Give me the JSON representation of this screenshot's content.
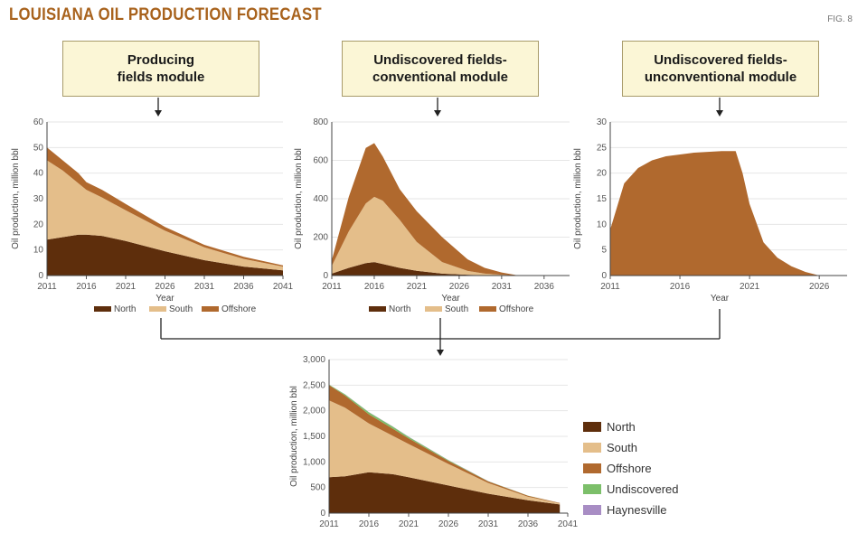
{
  "title": "LOUISIANA OIL PRODUCTION FORECAST",
  "fig_label": "FIG. 8",
  "modules": [
    {
      "label": "Producing\nfields module"
    },
    {
      "label": "Undiscovered fields-\nconventional module"
    },
    {
      "label": "Undiscovered fields-\nunconventional module"
    }
  ],
  "colors": {
    "north": "#5e2e0c",
    "south": "#e4be8a",
    "offshore": "#b0692e",
    "undiscovered": "#7cbf6a",
    "haynesville": "#a88dc4",
    "arrow": "#222222"
  },
  "chart_data": [
    {
      "type": "area",
      "title": "",
      "xlabel": "Year",
      "ylabel": "Oil production, million bbl",
      "xlim": [
        2011,
        2041
      ],
      "ylim": [
        0,
        60
      ],
      "xticks": [
        "2011",
        "2016",
        "2021",
        "2026",
        "2031",
        "2036",
        "2041"
      ],
      "yticks": [
        "0",
        "10",
        "20",
        "30",
        "40",
        "50",
        "60"
      ],
      "stack_order": [
        "North",
        "South",
        "Offshore"
      ],
      "x": [
        2011,
        2013,
        2015,
        2016,
        2018,
        2021,
        2026,
        2031,
        2036,
        2041
      ],
      "series": [
        {
          "name": "North",
          "values": [
            14,
            15,
            16,
            16,
            15.5,
            13.5,
            9.5,
            6,
            3.5,
            2
          ]
        },
        {
          "name": "South",
          "values": [
            31,
            26,
            20,
            17.5,
            15,
            12,
            8,
            5,
            3,
            1.5
          ]
        },
        {
          "name": "Offshore",
          "values": [
            5,
            4,
            4,
            3,
            3,
            2.5,
            1.5,
            1,
            0.8,
            0.5
          ]
        }
      ],
      "legend": [
        "North",
        "South",
        "Offshore"
      ]
    },
    {
      "type": "area",
      "title": "",
      "xlabel": "Year",
      "ylabel": "Oil production, million bbl",
      "xlim": [
        2011,
        2039
      ],
      "ylim": [
        0,
        800
      ],
      "xticks": [
        "2011",
        "2016",
        "2021",
        "2026",
        "2031",
        "2036"
      ],
      "yticks": [
        "0",
        "200",
        "400",
        "600",
        "800"
      ],
      "stack_order": [
        "North",
        "South",
        "Offshore"
      ],
      "x": [
        2011,
        2013,
        2015,
        2016,
        2017,
        2019,
        2021,
        2024,
        2027,
        2029,
        2031,
        2033
      ],
      "series": [
        {
          "name": "North",
          "values": [
            10,
            40,
            65,
            70,
            60,
            40,
            25,
            10,
            4,
            2,
            1,
            0
          ]
        },
        {
          "name": "South",
          "values": [
            40,
            190,
            310,
            340,
            330,
            250,
            150,
            60,
            20,
            8,
            3,
            0
          ]
        },
        {
          "name": "Offshore",
          "values": [
            30,
            180,
            290,
            280,
            230,
            160,
            160,
            130,
            60,
            30,
            12,
            0
          ]
        }
      ],
      "legend": [
        "North",
        "South",
        "Offshore"
      ]
    },
    {
      "type": "area",
      "title": "",
      "xlabel": "Year",
      "ylabel": "Oil production, million bbl",
      "xlim": [
        2011,
        2028
      ],
      "ylim": [
        0,
        30
      ],
      "xticks": [
        "2011",
        "2016",
        "2021",
        "2026"
      ],
      "yticks": [
        "0",
        "5",
        "10",
        "15",
        "20",
        "25",
        "30"
      ],
      "x": [
        2011,
        2012,
        2013,
        2014,
        2015,
        2017,
        2019,
        2020,
        2020.5,
        2021,
        2022,
        2023,
        2024,
        2025,
        2026
      ],
      "series": [
        {
          "name": "",
          "values": [
            9,
            18,
            21,
            22.5,
            23.3,
            24,
            24.3,
            24.3,
            20,
            14,
            6.5,
            3.5,
            1.8,
            0.7,
            0
          ]
        }
      ]
    },
    {
      "type": "area",
      "title": "",
      "xlabel": "",
      "ylabel": "Oil production, million bbl",
      "xlim": [
        2011,
        2041
      ],
      "ylim": [
        0,
        3000
      ],
      "xticks": [
        "2011",
        "2016",
        "2021",
        "2026",
        "2031",
        "2036",
        "2041"
      ],
      "yticks": [
        "0",
        "500",
        "1,000",
        "1,500",
        "2,000",
        "2,500",
        "3,000"
      ],
      "stack_order": [
        "North",
        "South",
        "Offshore",
        "Undiscovered",
        "Haynesville"
      ],
      "x": [
        2011,
        2013,
        2016,
        2019,
        2021,
        2026,
        2031,
        2036,
        2040
      ],
      "series": [
        {
          "name": "North",
          "values": [
            700,
            720,
            800,
            760,
            700,
            540,
            380,
            250,
            170
          ]
        },
        {
          "name": "South",
          "values": [
            1500,
            1340,
            950,
            750,
            650,
            420,
            210,
            70,
            20
          ]
        },
        {
          "name": "Offshore",
          "values": [
            300,
            240,
            180,
            140,
            110,
            60,
            30,
            20,
            10
          ]
        },
        {
          "name": "Undiscovered",
          "values": [
            10,
            20,
            40,
            40,
            30,
            15,
            5,
            2,
            0
          ]
        },
        {
          "name": "Haynesville",
          "values": [
            0,
            2,
            4,
            4,
            3,
            2,
            1,
            0,
            0
          ]
        }
      ],
      "legend": [
        "North",
        "South",
        "Offshore",
        "Undiscovered",
        "Haynesville"
      ]
    }
  ]
}
